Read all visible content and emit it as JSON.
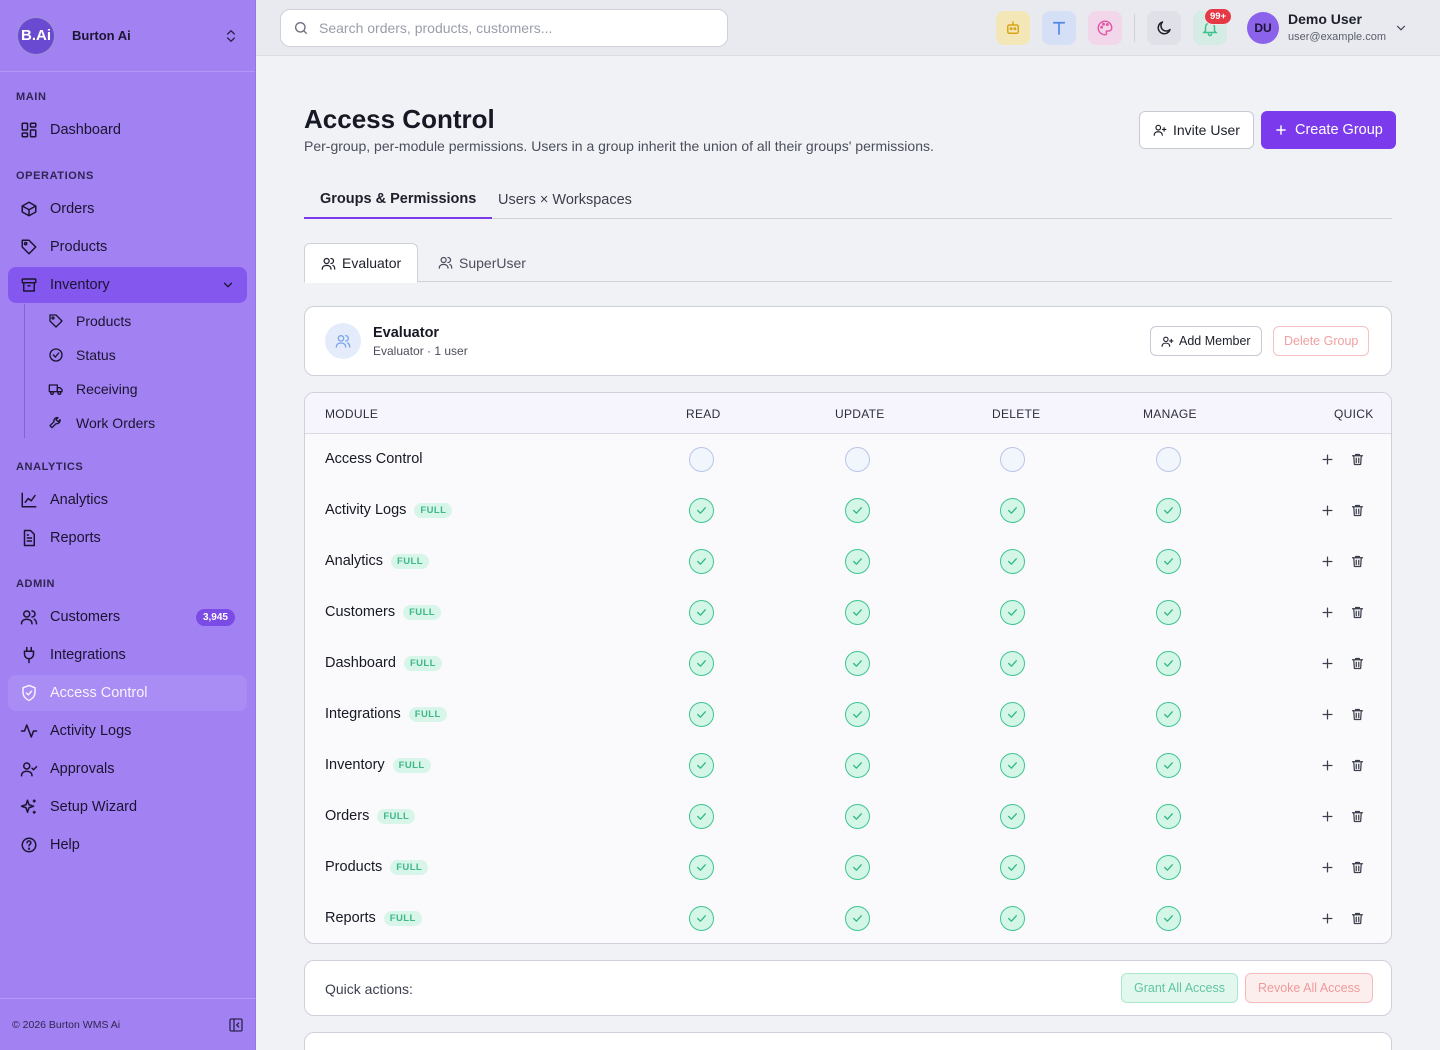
{
  "brand": {
    "logo": "B.Ai",
    "name": "Burton Ai"
  },
  "sidebar": {
    "sections": [
      {
        "label": "MAIN"
      },
      {
        "label": "OPERATIONS"
      },
      {
        "label": "ANALYTICS"
      },
      {
        "label": "ADMIN"
      }
    ],
    "items": [
      {
        "label": "Dashboard",
        "icon": "dashboard-icon"
      },
      {
        "label": "Orders",
        "icon": "box-icon"
      },
      {
        "label": "Products",
        "icon": "tag-icon"
      },
      {
        "label": "Inventory",
        "icon": "archive-icon"
      },
      {
        "label": "Analytics",
        "icon": "line-chart-icon"
      },
      {
        "label": "Reports",
        "icon": "file-text-icon"
      },
      {
        "label": "Customers",
        "icon": "users-icon",
        "badge": "3,945"
      },
      {
        "label": "Integrations",
        "icon": "plug-icon"
      },
      {
        "label": "Access Control",
        "icon": "shield-check-icon"
      },
      {
        "label": "Activity Logs",
        "icon": "activity-icon"
      },
      {
        "label": "Approvals",
        "icon": "user-check-icon"
      },
      {
        "label": "Setup Wizard",
        "icon": "sparkles-icon"
      },
      {
        "label": "Help",
        "icon": "help-circle-icon"
      }
    ],
    "inventory_sub": [
      {
        "label": "Products",
        "icon": "tag-icon"
      },
      {
        "label": "Status",
        "icon": "check-circle-icon"
      },
      {
        "label": "Receiving",
        "icon": "truck-icon"
      },
      {
        "label": "Work Orders",
        "icon": "wrench-icon"
      }
    ],
    "footer": "© 2026 Burton WMS Ai"
  },
  "topbar": {
    "search_placeholder": "Search orders, products, customers...",
    "notif_count": "99+",
    "user": {
      "initials": "DU",
      "name": "Demo User",
      "email": "user@example.com"
    }
  },
  "page": {
    "title": "Access Control",
    "subtitle": "Per-group, per-module permissions. Users in a group inherit the union of all their groups' permissions.",
    "invite_label": "Invite User",
    "create_label": "Create Group",
    "tabs": [
      "Groups & Permissions",
      "Users × Workspaces"
    ],
    "group_tabs": [
      "Evaluator",
      "SuperUser"
    ]
  },
  "group": {
    "name": "Evaluator",
    "meta": "Evaluator · 1 user",
    "add_member_label": "Add Member",
    "delete_label": "Delete Group"
  },
  "table": {
    "headers": [
      "MODULE",
      "READ",
      "UPDATE",
      "DELETE",
      "MANAGE",
      "QUICK"
    ],
    "badge_label": "FULL",
    "rows": [
      {
        "module": "Access Control",
        "full": false,
        "read": false,
        "update": false,
        "delete": false,
        "manage": false
      },
      {
        "module": "Activity Logs",
        "full": true,
        "read": true,
        "update": true,
        "delete": true,
        "manage": true
      },
      {
        "module": "Analytics",
        "full": true,
        "read": true,
        "update": true,
        "delete": true,
        "manage": true
      },
      {
        "module": "Customers",
        "full": true,
        "read": true,
        "update": true,
        "delete": true,
        "manage": true
      },
      {
        "module": "Dashboard",
        "full": true,
        "read": true,
        "update": true,
        "delete": true,
        "manage": true
      },
      {
        "module": "Integrations",
        "full": true,
        "read": true,
        "update": true,
        "delete": true,
        "manage": true
      },
      {
        "module": "Inventory",
        "full": true,
        "read": true,
        "update": true,
        "delete": true,
        "manage": true
      },
      {
        "module": "Orders",
        "full": true,
        "read": true,
        "update": true,
        "delete": true,
        "manage": true
      },
      {
        "module": "Products",
        "full": true,
        "read": true,
        "update": true,
        "delete": true,
        "manage": true
      },
      {
        "module": "Reports",
        "full": true,
        "read": true,
        "update": true,
        "delete": true,
        "manage": true
      }
    ]
  },
  "quick": {
    "label": "Quick actions:",
    "grant_label": "Grant All Access",
    "revoke_label": "Revoke All Access"
  },
  "colors": {
    "accent": "#7c3aed",
    "sidebar": "#a281f2",
    "success": "#3fc493",
    "danger": "#e53945"
  }
}
